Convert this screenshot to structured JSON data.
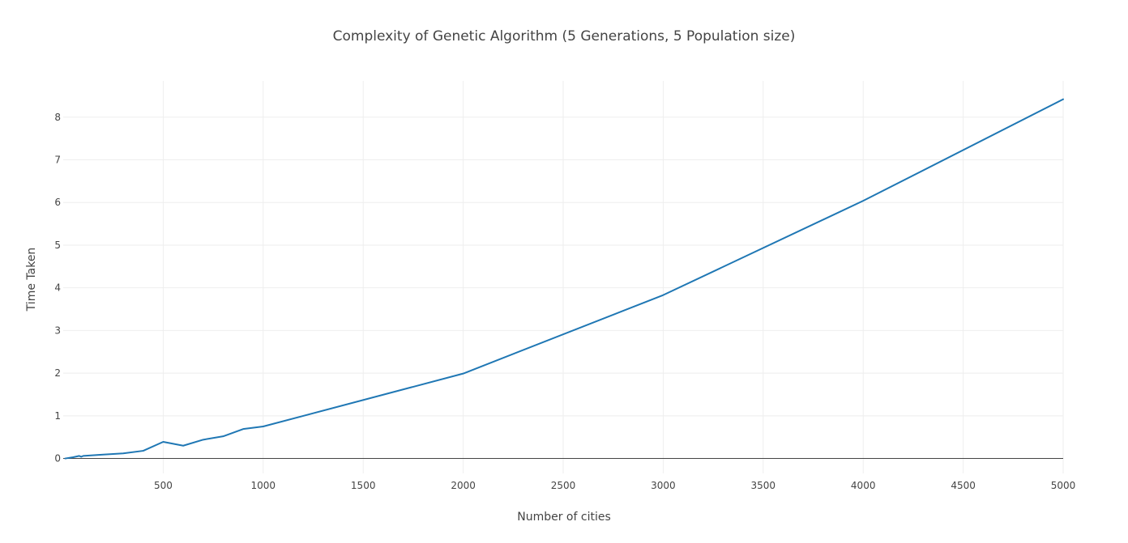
{
  "chart_data": {
    "type": "line",
    "title": "Complexity of Genetic Algorithm (5 Generations, 5 Population size)",
    "xlabel": "Number of cities",
    "ylabel": "Time Taken",
    "xlim": [
      0,
      5000
    ],
    "ylim": [
      -0.35,
      8.85
    ],
    "xticks": [
      500,
      1000,
      1500,
      2000,
      2500,
      3000,
      3500,
      4000,
      4500,
      5000
    ],
    "yticks": [
      0,
      1,
      2,
      3,
      4,
      5,
      6,
      7,
      8
    ],
    "grid": true,
    "legend": "none",
    "series": [
      {
        "color": "#1f77b4",
        "x": [
          10,
          50,
          80,
          90,
          100,
          200,
          300,
          400,
          500,
          600,
          700,
          800,
          900,
          1000,
          2000,
          3000,
          4000,
          5000
        ],
        "y": [
          0.0,
          0.03,
          0.06,
          0.04,
          0.06,
          0.09,
          0.12,
          0.18,
          0.39,
          0.3,
          0.44,
          0.52,
          0.69,
          0.75,
          1.99,
          3.83,
          6.04,
          8.42
        ]
      }
    ]
  }
}
